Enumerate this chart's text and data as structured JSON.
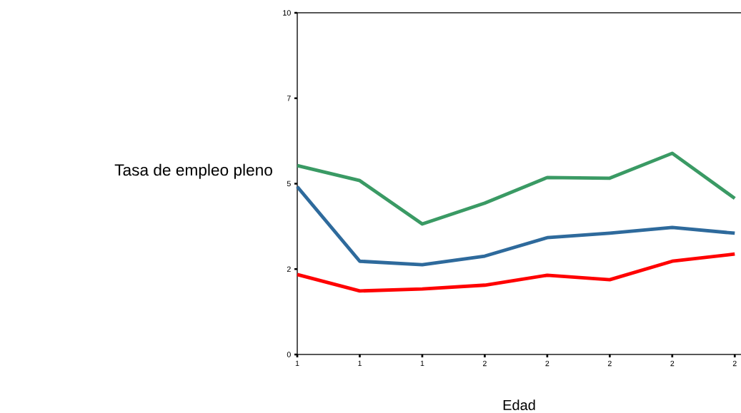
{
  "chart_data": {
    "type": "line",
    "xlabel": "Edad",
    "ylabel": "Tasa de empleo pleno",
    "categories": [
      "1",
      "1",
      "1",
      "2",
      "2",
      "2",
      "2",
      "2"
    ],
    "ylim": [
      0,
      10
    ],
    "yticks": [
      0,
      {
        "value": 2.5,
        "label": "2"
      },
      5,
      {
        "value": 7.5,
        "label": "7"
      },
      10
    ],
    "series": [
      {
        "color": "#3a9a64",
        "values": [
          5.53,
          5.09,
          3.82,
          4.43,
          5.18,
          5.16,
          5.89,
          4.57
        ]
      },
      {
        "color": "#2e6a9c",
        "values": [
          4.91,
          2.73,
          2.63,
          2.88,
          3.42,
          3.55,
          3.72,
          3.55
        ]
      },
      {
        "color": "#ff0000",
        "values": [
          2.34,
          1.86,
          1.92,
          2.03,
          2.32,
          2.19,
          2.73,
          2.94
        ]
      }
    ],
    "grid": false,
    "legend": false,
    "marker": "none",
    "line_style": "solid"
  }
}
